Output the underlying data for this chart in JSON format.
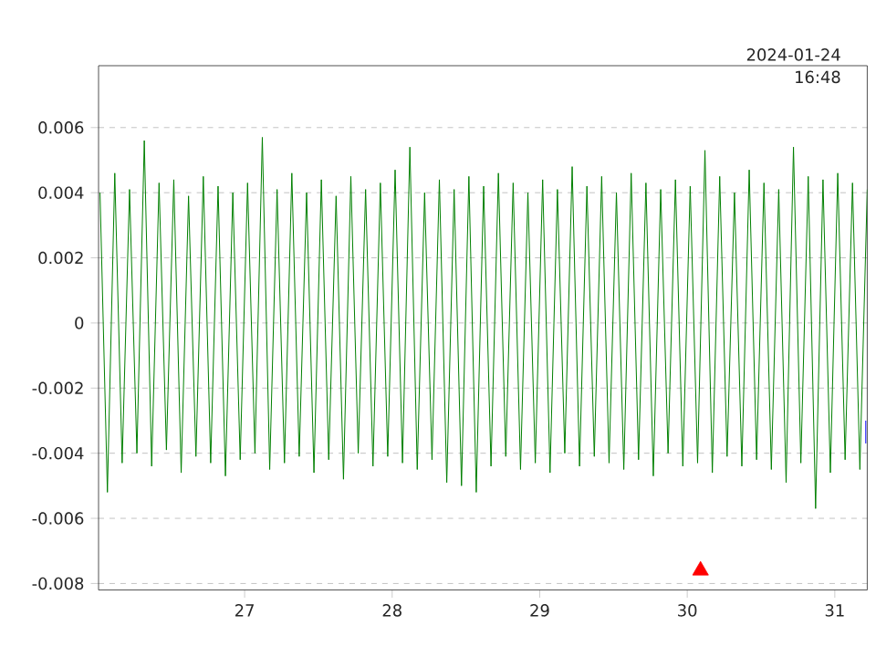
{
  "chart_data": {
    "type": "line",
    "xlim": [
      26.01,
      31.22
    ],
    "xticks": [
      27,
      28,
      29,
      30,
      31
    ],
    "ylim": [
      -0.0082,
      0.0079
    ],
    "yticks": [
      -0.008,
      -0.006,
      -0.004,
      -0.002,
      0,
      0.002,
      0.004,
      0.006
    ],
    "grid": "y",
    "annotations": [
      "2024-01-24",
      "16:48"
    ],
    "series": [
      {
        "color": "#008000",
        "x": [
          26.02,
          26.07,
          26.12,
          26.17,
          26.22,
          26.27,
          26.32,
          26.37,
          26.42,
          26.47,
          26.52,
          26.57,
          26.62,
          26.67,
          26.72,
          26.77,
          26.82,
          26.87,
          26.92,
          26.97,
          27.02,
          27.07,
          27.12,
          27.17,
          27.22,
          27.27,
          27.32,
          27.37,
          27.42,
          27.47,
          27.52,
          27.57,
          27.62,
          27.67,
          27.72,
          27.77,
          27.82,
          27.87,
          27.92,
          27.97,
          28.02,
          28.07,
          28.12,
          28.17,
          28.22,
          28.27,
          28.32,
          28.37,
          28.42,
          28.47,
          28.52,
          28.57,
          28.62,
          28.67,
          28.72,
          28.77,
          28.82,
          28.87,
          28.92,
          28.97,
          29.02,
          29.07,
          29.12,
          29.17,
          29.22,
          29.27,
          29.32,
          29.37,
          29.42,
          29.47,
          29.52,
          29.57,
          29.62,
          29.67,
          29.72,
          29.77,
          29.82,
          29.87,
          29.92,
          29.97,
          30.02,
          30.07,
          30.12,
          30.17,
          30.22,
          30.27,
          30.32,
          30.37,
          30.42,
          30.47,
          30.52,
          30.57,
          30.62,
          30.67,
          30.72,
          30.77,
          30.82,
          30.87,
          30.92,
          30.97,
          31.02,
          31.07,
          31.12,
          31.17,
          31.22
        ],
        "values": [
          0.004,
          -0.0052,
          0.0046,
          -0.0043,
          0.0041,
          -0.004,
          0.0056,
          -0.0044,
          0.0043,
          -0.0039,
          0.0044,
          -0.0046,
          0.0039,
          -0.0041,
          0.0045,
          -0.0043,
          0.0042,
          -0.0047,
          0.004,
          -0.0042,
          0.0043,
          -0.004,
          0.0057,
          -0.0045,
          0.0041,
          -0.0043,
          0.0046,
          -0.0041,
          0.004,
          -0.0046,
          0.0044,
          -0.0042,
          0.0039,
          -0.0048,
          0.0045,
          -0.004,
          0.0041,
          -0.0044,
          0.0043,
          -0.0041,
          0.0047,
          -0.0043,
          0.0054,
          -0.0045,
          0.004,
          -0.0042,
          0.0044,
          -0.0049,
          0.0041,
          -0.005,
          0.0045,
          -0.0052,
          0.0042,
          -0.0044,
          0.0046,
          -0.0041,
          0.0043,
          -0.0045,
          0.004,
          -0.0043,
          0.0044,
          -0.0046,
          0.0041,
          -0.004,
          0.0048,
          -0.0044,
          0.0042,
          -0.0041,
          0.0045,
          -0.0043,
          0.004,
          -0.0045,
          0.0046,
          -0.0042,
          0.0043,
          -0.0047,
          0.0041,
          -0.004,
          0.0044,
          -0.0044,
          0.0042,
          -0.0043,
          0.0053,
          -0.0046,
          0.0045,
          -0.0041,
          0.004,
          -0.0044,
          0.0047,
          -0.0042,
          0.0043,
          -0.0045,
          0.0041,
          -0.0049,
          0.0054,
          -0.0043,
          0.0045,
          -0.0057,
          0.0044,
          -0.0046,
          0.0046,
          -0.0042,
          0.0043,
          -0.0045,
          0.0041
        ]
      },
      {
        "color": "#0000ff",
        "x": [
          31.21,
          31.21
        ],
        "values": [
          -0.003,
          -0.0037
        ]
      },
      {
        "type": "scatter",
        "marker": "triangle",
        "color": "#ff0000",
        "x": [
          30.09
        ],
        "values": [
          -0.0076
        ]
      }
    ]
  }
}
